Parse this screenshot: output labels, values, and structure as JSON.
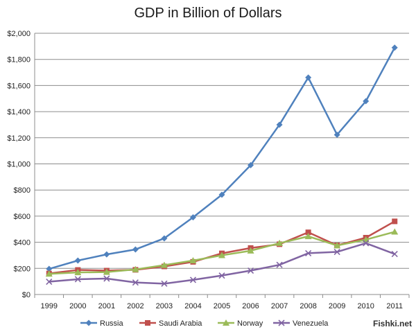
{
  "chart_data": {
    "type": "line",
    "title": "GDP in Billion of Dollars",
    "xlabel": "",
    "ylabel": "",
    "categories": [
      "1999",
      "2000",
      "2001",
      "2002",
      "2003",
      "2004",
      "2005",
      "2006",
      "2007",
      "2008",
      "2009",
      "2010",
      "2011"
    ],
    "ylim": [
      0,
      2000
    ],
    "yticks": [
      0,
      200,
      400,
      600,
      800,
      1000,
      1200,
      1400,
      1600,
      1800,
      2000
    ],
    "ytick_labels": [
      "$0",
      "$200",
      "$400",
      "$600",
      "$800",
      "$1,000",
      "$1,200",
      "$1,400",
      "$1,600",
      "$1,800",
      "$2,000"
    ],
    "grid": true,
    "legend_position": "bottom",
    "series": [
      {
        "name": "Russia",
        "color": "#4f81bd",
        "marker": "diamond",
        "values": [
          196,
          260,
          307,
          345,
          430,
          591,
          764,
          990,
          1300,
          1661,
          1223,
          1480,
          1890
        ]
      },
      {
        "name": "Saudi Arabia",
        "color": "#c0504d",
        "marker": "square",
        "values": [
          161,
          188,
          183,
          189,
          215,
          250,
          315,
          356,
          385,
          476,
          376,
          435,
          560
        ]
      },
      {
        "name": "Norway",
        "color": "#9bbb59",
        "marker": "triangle",
        "values": [
          158,
          169,
          172,
          192,
          225,
          260,
          300,
          335,
          393,
          445,
          375,
          420,
          480
        ]
      },
      {
        "name": "Venezuela",
        "color": "#8064a2",
        "marker": "x",
        "values": [
          98,
          117,
          122,
          92,
          83,
          112,
          145,
          183,
          227,
          316,
          326,
          393,
          310
        ]
      }
    ]
  },
  "watermark": "Fishki.net"
}
